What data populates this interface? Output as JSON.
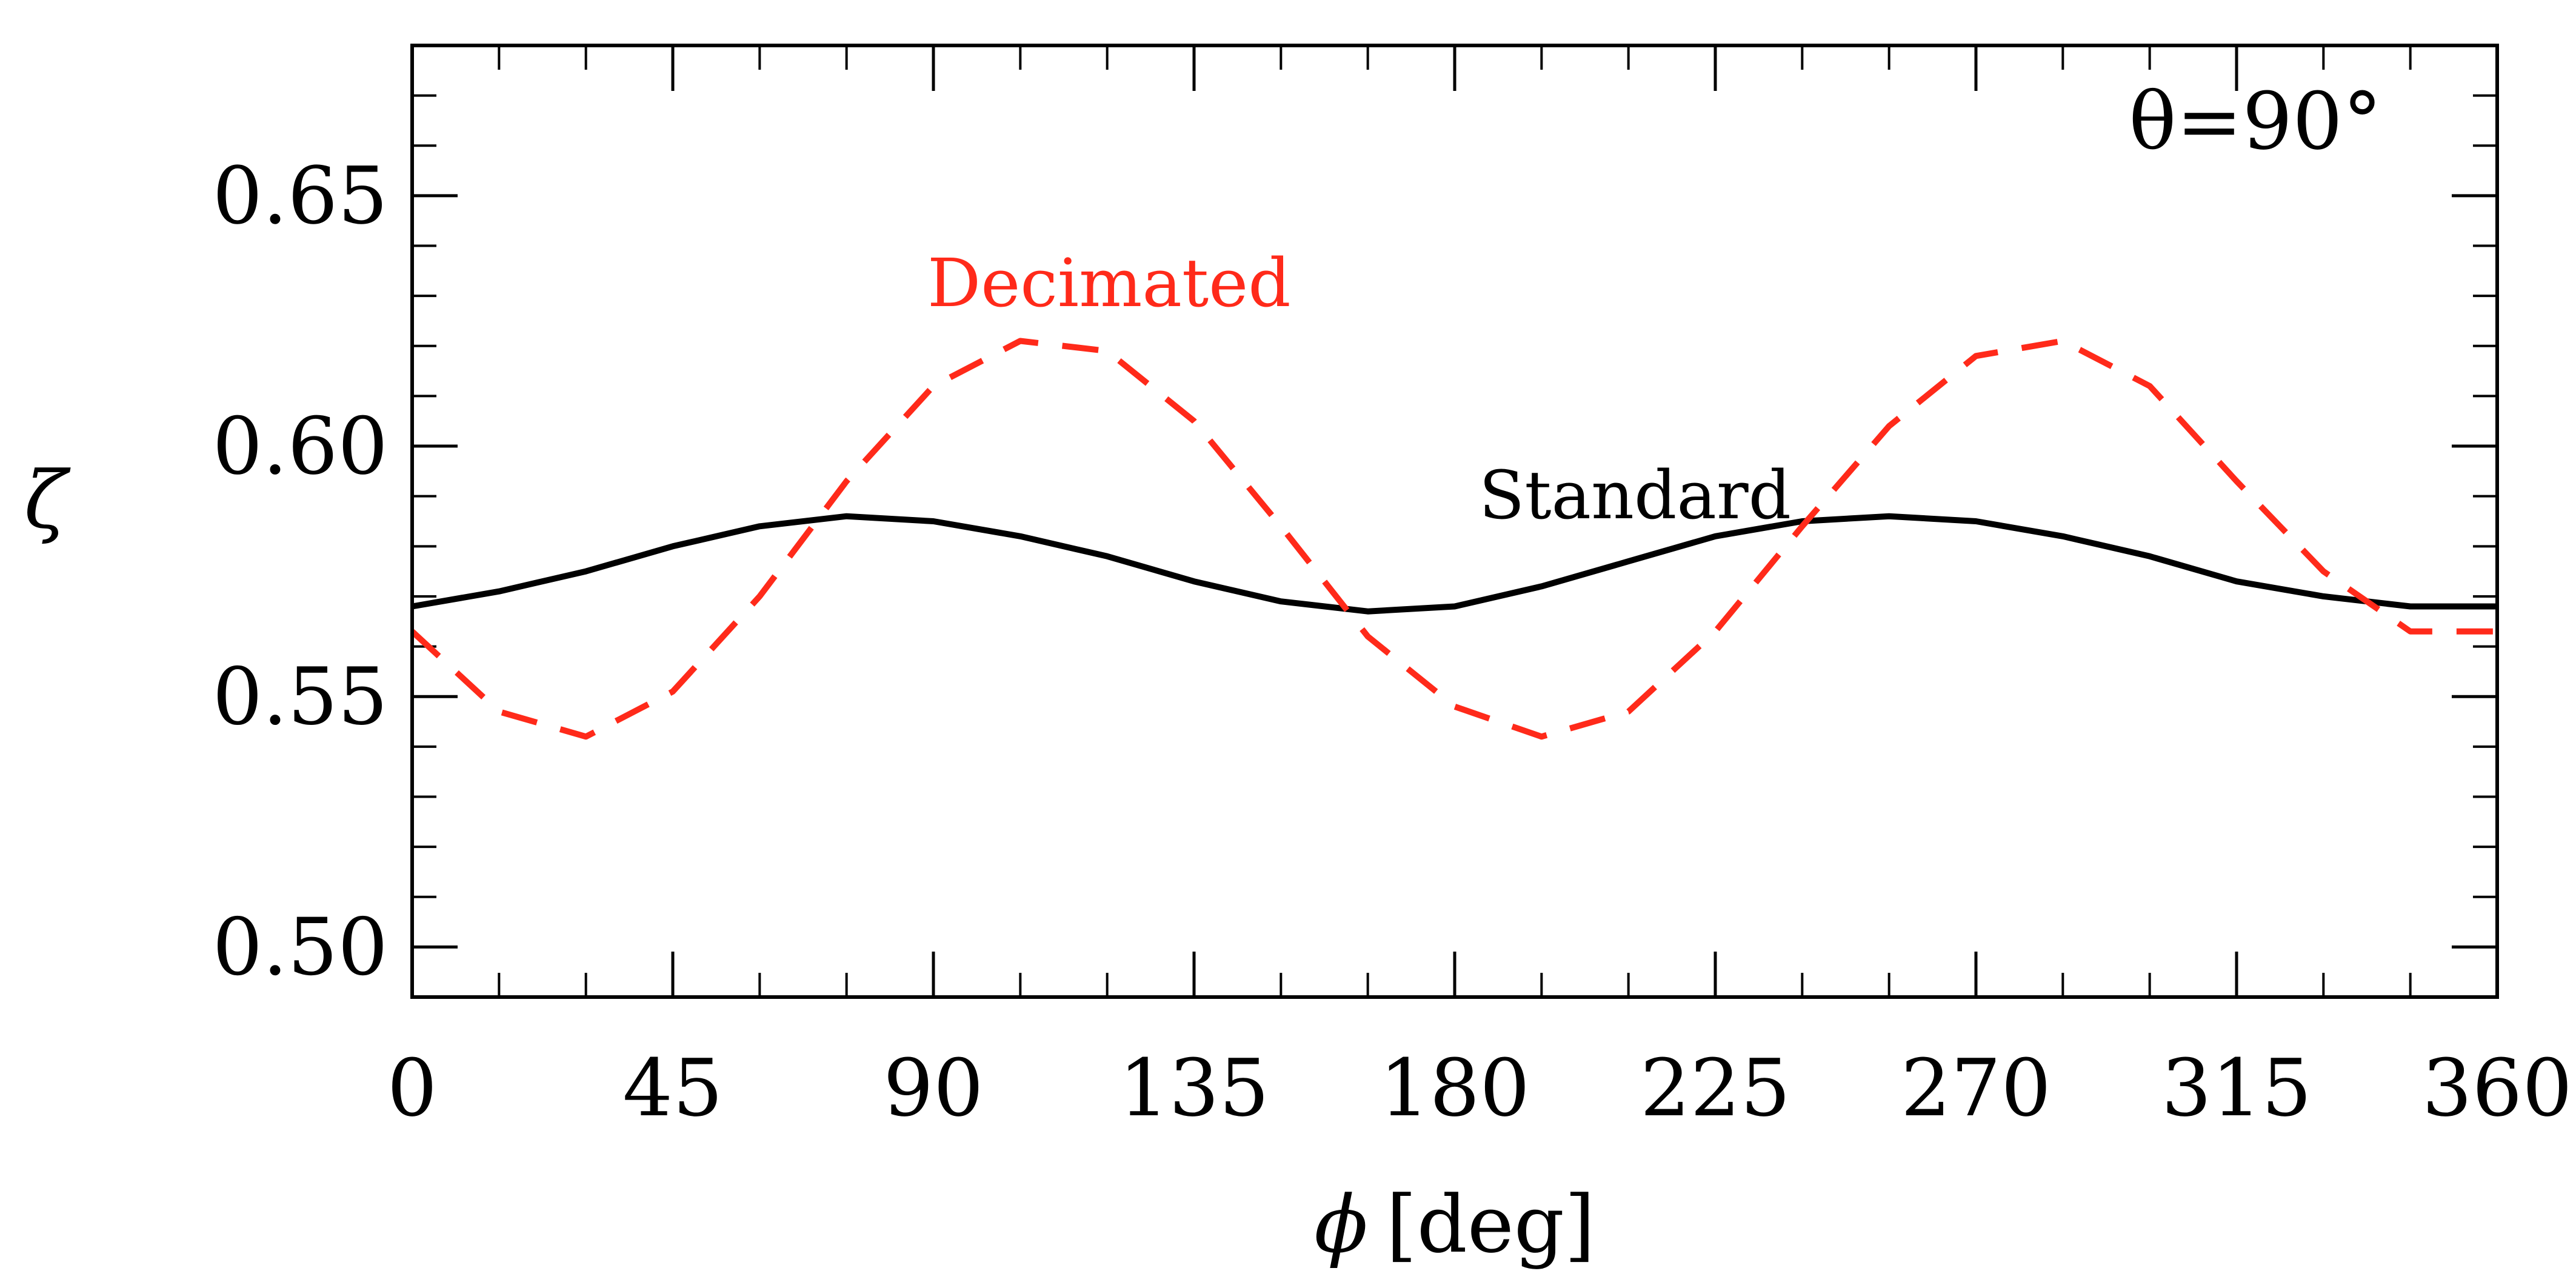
{
  "chart_data": {
    "type": "line",
    "x": [
      0,
      15,
      30,
      45,
      60,
      75,
      90,
      105,
      120,
      135,
      150,
      165,
      180,
      195,
      210,
      225,
      240,
      255,
      270,
      285,
      300,
      315,
      330,
      345,
      360
    ],
    "series": [
      {
        "name": "Standard",
        "color": "#000000",
        "dash": "solid",
        "values": [
          0.568,
          0.571,
          0.575,
          0.58,
          0.584,
          0.586,
          0.585,
          0.582,
          0.578,
          0.573,
          0.569,
          0.567,
          0.568,
          0.572,
          0.577,
          0.582,
          0.585,
          0.586,
          0.585,
          0.582,
          0.578,
          0.573,
          0.57,
          0.568,
          0.568
        ]
      },
      {
        "name": "Decimated",
        "color": "#ff2a1a",
        "dash": "dashed",
        "values": [
          0.563,
          0.547,
          0.542,
          0.551,
          0.57,
          0.593,
          0.612,
          0.621,
          0.619,
          0.605,
          0.584,
          0.562,
          0.548,
          0.542,
          0.547,
          0.563,
          0.584,
          0.604,
          0.618,
          0.621,
          0.612,
          0.593,
          0.575,
          0.563,
          0.563
        ]
      }
    ],
    "xlabel": "[deg]",
    "xlabel_symbol": "ϕ",
    "ylabel": "ζ",
    "xlim": [
      0,
      360
    ],
    "ylim": [
      0.49,
      0.68
    ],
    "xticks": [
      0,
      45,
      90,
      135,
      180,
      225,
      270,
      315,
      360
    ],
    "xtick_labels": [
      "0",
      "45",
      "90",
      "135",
      "180",
      "225",
      "270",
      "315",
      "360"
    ],
    "yticks": [
      0.5,
      0.55,
      0.6,
      0.65
    ],
    "ytick_labels": [
      "0.50",
      "0.55",
      "0.60",
      "0.65"
    ],
    "y_minor_step": 0.01,
    "x_minor_step": 15,
    "annotation": "θ=90°",
    "grid": false
  }
}
